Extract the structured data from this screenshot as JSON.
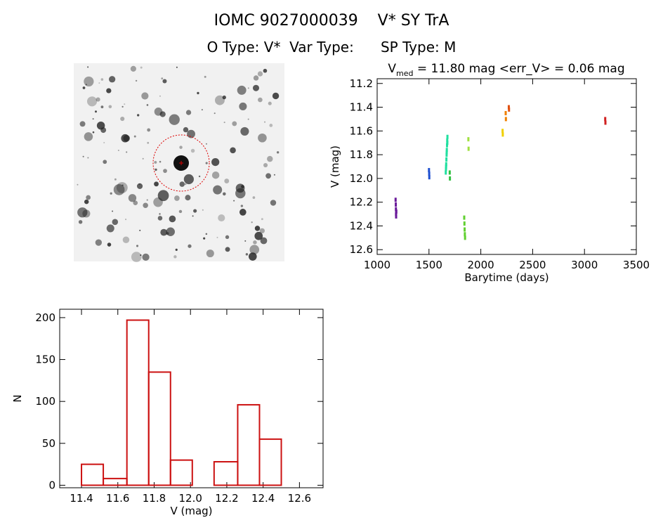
{
  "header": {
    "title": "IOMC 9027000039    V* SY TrA",
    "subtitle": "O Type: V*  Var Type:      SP Type: M"
  },
  "chart_data": [
    {
      "type": "scatter",
      "title": "V",
      "title_sub": "med",
      "title_rest": " = 11.80 mag <err_V> = 0.06 mag",
      "x_label": "Barytime (days)",
      "y_label": "V (mag)",
      "xlim": [
        1000,
        3500
      ],
      "xticks": [
        1000,
        1500,
        2000,
        2500,
        3000,
        3500
      ],
      "ylim": [
        12.64,
        11.16
      ],
      "yticks": [
        11.2,
        11.4,
        11.6,
        11.8,
        {
          "value": 12,
          "label": "12.0"
        },
        12.2,
        12.4,
        12.6
      ],
      "x": [
        1178,
        1180,
        1181,
        1182,
        1183,
        1185,
        1500,
        1502,
        1503,
        1662,
        1664,
        1666,
        1668,
        1670,
        1672,
        1674,
        1676,
        1678,
        1665,
        1671,
        1677,
        1700,
        1702,
        1840,
        1842,
        1844,
        1846,
        1848,
        1880,
        1882,
        2210,
        2212,
        2240,
        2242,
        2270,
        2272,
        3200,
        3202
      ],
      "values": [
        12.18,
        12.22,
        12.26,
        12.3,
        12.32,
        12.28,
        11.93,
        11.96,
        11.99,
        11.95,
        11.92,
        11.88,
        11.84,
        11.8,
        11.76,
        11.72,
        11.68,
        11.65,
        11.9,
        11.78,
        11.7,
        11.95,
        12.0,
        12.33,
        12.38,
        12.43,
        12.47,
        12.5,
        11.67,
        11.75,
        11.6,
        11.63,
        11.45,
        11.5,
        11.4,
        11.42,
        11.5,
        11.53
      ],
      "colors": [
        "#6a1a9a",
        "#6a1a9a",
        "#6a1a9a",
        "#6a1a9a",
        "#6a1a9a",
        "#6a1a9a",
        "#1e4fd0",
        "#1e4fd0",
        "#1e4fd0",
        "#20e0a0",
        "#20e0a0",
        "#20e0a0",
        "#20e0a0",
        "#20e0a0",
        "#20e0a0",
        "#20e0a0",
        "#20e0a0",
        "#20e0a0",
        "#20e0a0",
        "#20e0a0",
        "#20e0a0",
        "#30c040",
        "#30c040",
        "#60d030",
        "#60d030",
        "#60d030",
        "#60d030",
        "#60d030",
        "#a0e040",
        "#a0e040",
        "#f0d000",
        "#f0d000",
        "#f08000",
        "#f08000",
        "#e05010",
        "#e05010",
        "#d02020",
        "#d02020"
      ]
    },
    {
      "type": "histogram",
      "x_label": "V (mag)",
      "y_label": "N",
      "color": "#cc1111",
      "bins": [
        11.4,
        11.52,
        11.65,
        11.77,
        11.89,
        12.01,
        12.13,
        12.26,
        12.38,
        12.5
      ],
      "values": [
        25,
        8,
        197,
        135,
        30,
        0,
        28,
        96,
        55
      ],
      "xlim": [
        11.28,
        12.73
      ],
      "xticks": [
        11.4,
        11.6,
        11.8,
        {
          "value": 12,
          "label": "12.0"
        },
        12.2,
        12.4,
        12.6
      ],
      "ylim": [
        -3,
        210
      ],
      "yticks": [
        0,
        50,
        100,
        150,
        200
      ]
    }
  ]
}
